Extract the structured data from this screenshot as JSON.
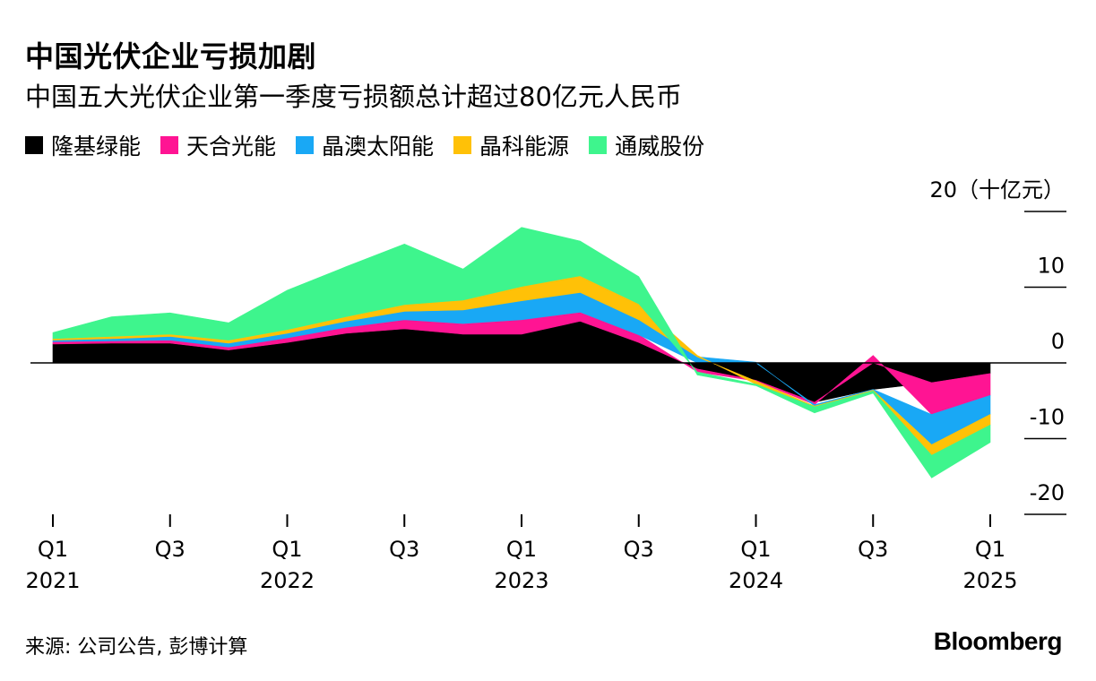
{
  "title": "中国光伏企业亏损加剧",
  "subtitle": "中国五大光伏企业第一季度亏损额总计超过80亿元人民币",
  "source": "来源: 公司公告, 彭博计算",
  "brand": "Bloomberg",
  "chart_data": {
    "type": "area",
    "stacked": true,
    "ylim": [
      -20,
      20
    ],
    "yticks": [
      20,
      10,
      0,
      -10,
      -20
    ],
    "ytick_labels": [
      "20（十亿元）",
      "10",
      "0",
      "-10",
      "-20"
    ],
    "x": [
      "2021Q1",
      "2021Q2",
      "2021Q3",
      "2021Q4",
      "2022Q1",
      "2022Q2",
      "2022Q3",
      "2022Q4",
      "2023Q1",
      "2023Q2",
      "2023Q3",
      "2023Q4",
      "2024Q1",
      "2024Q2",
      "2024Q3",
      "2024Q4",
      "2025Q1"
    ],
    "xtick_labels": [
      {
        "index": 0,
        "quarter": "Q1",
        "year": "2021"
      },
      {
        "index": 2,
        "quarter": "Q3",
        "year": ""
      },
      {
        "index": 4,
        "quarter": "Q1",
        "year": "2022"
      },
      {
        "index": 6,
        "quarter": "Q3",
        "year": ""
      },
      {
        "index": 8,
        "quarter": "Q1",
        "year": "2023"
      },
      {
        "index": 10,
        "quarter": "Q3",
        "year": ""
      },
      {
        "index": 12,
        "quarter": "Q1",
        "year": "2024"
      },
      {
        "index": 14,
        "quarter": "Q3",
        "year": ""
      },
      {
        "index": 16,
        "quarter": "Q1",
        "year": "2025"
      }
    ],
    "series": [
      {
        "name": "隆基绿能",
        "color": "#000000",
        "values": [
          2.5,
          2.6,
          2.6,
          1.7,
          2.7,
          3.9,
          4.5,
          3.8,
          3.8,
          5.5,
          2.7,
          -0.8,
          -2.3,
          -5.2,
          -3.5,
          -2.6,
          -1.4
        ]
      },
      {
        "name": "天合光能",
        "color": "#ff1493",
        "values": [
          0.3,
          0.3,
          0.4,
          0.4,
          0.6,
          0.8,
          1.2,
          1.4,
          1.9,
          1.2,
          1.0,
          -0.4,
          -0.1,
          -0.3,
          1.0,
          -4.2,
          -2.9
        ]
      },
      {
        "name": "晶澳太阳能",
        "color": "#19a8f5",
        "values": [
          0.2,
          0.3,
          0.5,
          0.5,
          0.6,
          0.8,
          1.1,
          1.8,
          2.5,
          2.6,
          2.0,
          0.8,
          0.1,
          -0.2,
          -0.1,
          -4.0,
          -2.5
        ]
      },
      {
        "name": "晶科能源",
        "color": "#ffc107",
        "values": [
          0.2,
          0.3,
          0.3,
          0.4,
          0.5,
          0.6,
          0.9,
          1.3,
          1.9,
          2.2,
          2.1,
          0.2,
          -0.4,
          -0.1,
          -0.1,
          -1.4,
          -1.4
        ]
      },
      {
        "name": "通威股份",
        "color": "#3ef58d",
        "values": [
          0.8,
          2.6,
          2.8,
          2.3,
          5.2,
          6.6,
          8.0,
          4.1,
          7.8,
          4.6,
          3.6,
          -0.4,
          -0.2,
          -0.8,
          -0.3,
          -3.0,
          -2.3
        ]
      }
    ]
  }
}
